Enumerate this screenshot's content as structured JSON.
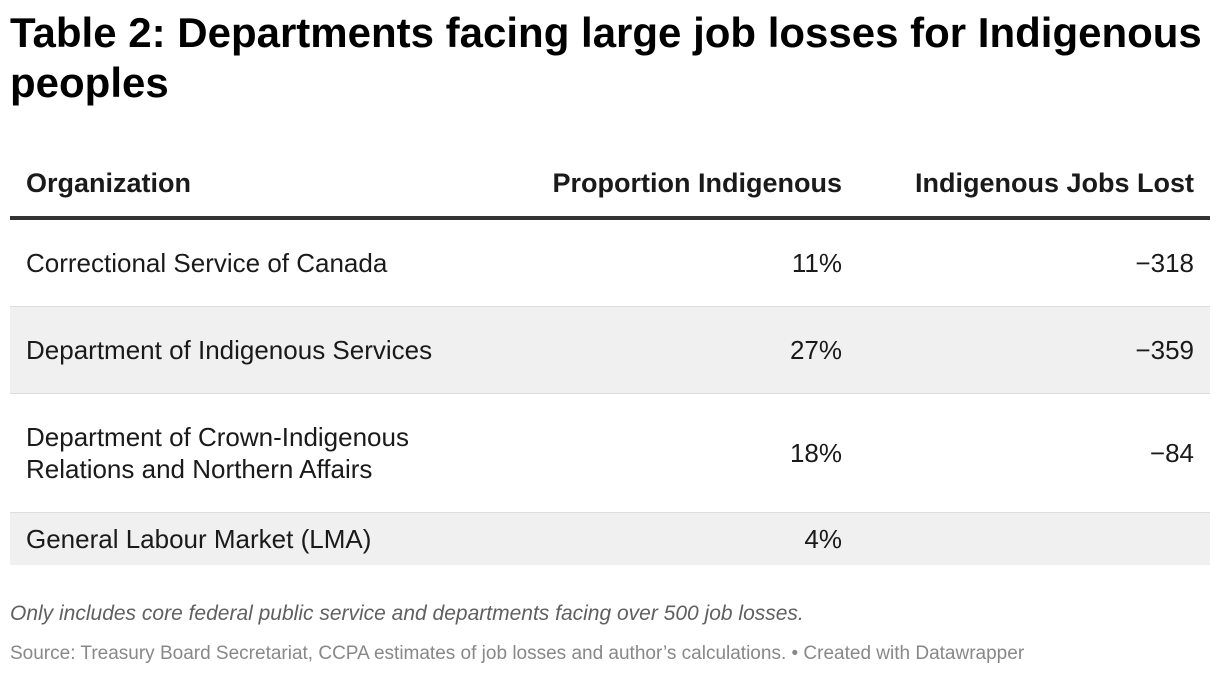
{
  "title": "Table 2: Departments facing large job losses for Indigenous peoples",
  "chart_data": {
    "type": "table",
    "title": "Table 2: Departments facing large job losses for Indigenous peoples",
    "columns": [
      "Organization",
      "Proportion Indigenous",
      "Indigenous Jobs Lost"
    ],
    "rows": [
      {
        "organization": "Correctional Service of Canada",
        "proportion_indigenous": "11%",
        "indigenous_jobs_lost": "−318"
      },
      {
        "organization": "Department of Indigenous Services",
        "proportion_indigenous": "27%",
        "indigenous_jobs_lost": "−359"
      },
      {
        "organization": "Department of Crown-Indigenous Relations and Northern Affairs",
        "proportion_indigenous": "18%",
        "indigenous_jobs_lost": "−84"
      },
      {
        "organization": "General Labour Market (LMA)",
        "proportion_indigenous": "4%",
        "indigenous_jobs_lost": ""
      }
    ]
  },
  "footer": {
    "note": "Only includes core federal public service and departments facing over 500 job losses.",
    "source": "Source: Treasury Board Secretariat, CCPA estimates of job losses and author’s calculations. • Created with Datawrapper"
  },
  "colors": {
    "header_rule": "#333333",
    "row_shade": "#f0f0f0",
    "row_divider": "#dddddd",
    "note_text": "#606060",
    "source_text": "#888888"
  }
}
